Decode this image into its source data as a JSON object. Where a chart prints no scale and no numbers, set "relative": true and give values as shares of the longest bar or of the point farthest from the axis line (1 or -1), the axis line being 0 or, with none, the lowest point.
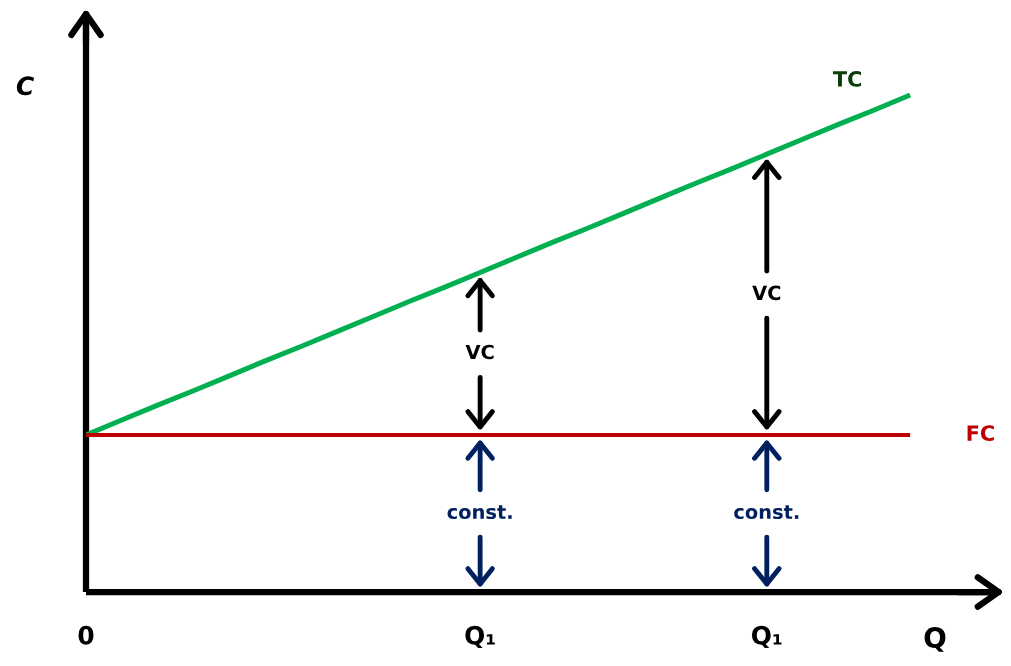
{
  "chart_data": {
    "type": "line",
    "relative": true,
    "xlabel": "Q",
    "ylabel": "C",
    "categories": [
      "0",
      null,
      null,
      null,
      null,
      null,
      null,
      null,
      null,
      null,
      null,
      "Q₁",
      null,
      null,
      null,
      null,
      null,
      null,
      null,
      "Q₁",
      null,
      null,
      null,
      null
    ],
    "series": [
      {
        "name": "TC",
        "color": "#00b050",
        "values": [
          0.316,
          0.346,
          0.376,
          0.405,
          0.435,
          0.465,
          0.494,
          0.524,
          0.554,
          0.584,
          0.613,
          0.643,
          0.673,
          0.703,
          0.732,
          0.762,
          0.792,
          0.822,
          0.851,
          0.881,
          0.911,
          0.941,
          0.97,
          1.0
        ]
      },
      {
        "name": "FC",
        "color": "#c00000",
        "values": [
          0.316,
          0.316,
          0.316,
          0.316,
          0.316,
          0.316,
          0.316,
          0.316,
          0.316,
          0.316,
          0.316,
          0.316,
          0.316,
          0.316,
          0.316,
          0.316,
          0.316,
          0.316,
          0.316,
          0.316,
          0.316,
          0.316,
          0.316,
          0.316
        ]
      }
    ],
    "annotations": [
      "VC",
      "const.",
      "VC",
      "const."
    ],
    "legend": false
  }
}
